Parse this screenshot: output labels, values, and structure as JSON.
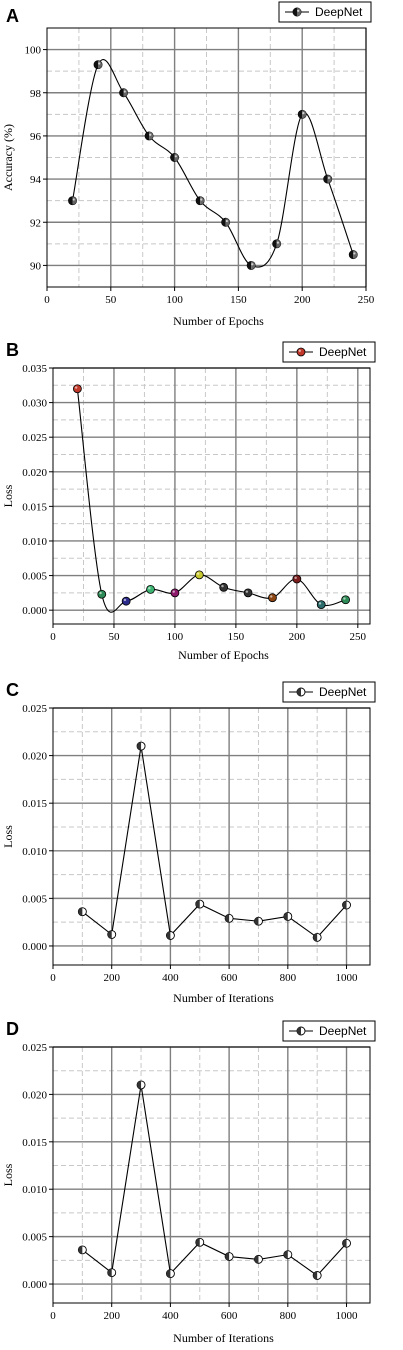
{
  "chart_data": [
    {
      "panel": "A",
      "type": "line",
      "xlabel": "Number of Epochs",
      "ylabel": "Accuracy (%)",
      "xlim": [
        0,
        250
      ],
      "ylim": [
        89,
        101
      ],
      "xticks": [
        "0",
        "50",
        "100",
        "150",
        "200",
        "250"
      ],
      "yticks": [
        "90",
        "92",
        "94",
        "96",
        "98",
        "100"
      ],
      "grid": true,
      "legend": "top-right",
      "smooth": true,
      "series": [
        {
          "name": "DeepNet",
          "marker_style": "half-black",
          "x": [
            20,
            40,
            60,
            80,
            100,
            120,
            140,
            160,
            180,
            200,
            220,
            240
          ],
          "y": [
            93,
            99.3,
            98,
            96,
            95,
            93,
            92,
            90,
            91,
            97,
            94,
            90.5
          ]
        }
      ]
    },
    {
      "panel": "B",
      "type": "line",
      "xlabel": "Number of Epochs",
      "ylabel": "Loss",
      "xlim": [
        0,
        260
      ],
      "ylim": [
        -0.002,
        0.035
      ],
      "xticks": [
        "0",
        "50",
        "100",
        "150",
        "200",
        "250"
      ],
      "yticks": [
        "0.000",
        "0.005",
        "0.010",
        "0.015",
        "0.020",
        "0.025",
        "0.030",
        "0.035"
      ],
      "grid": true,
      "legend": "top-right",
      "smooth": true,
      "series": [
        {
          "name": "DeepNet",
          "marker_style": "colored",
          "x": [
            20,
            40,
            60,
            80,
            100,
            120,
            140,
            160,
            180,
            200,
            220,
            240
          ],
          "y": [
            0.032,
            0.0023,
            0.0013,
            0.003,
            0.0025,
            0.0051,
            0.0033,
            0.0025,
            0.0018,
            0.0045,
            0.0008,
            0.0015
          ],
          "marker_colors": [
            "#c0392b",
            "#2e8b57",
            "#2b2b8c",
            "#3cb371",
            "#8b1a6b",
            "#c8c832",
            "#333333",
            "#333333",
            "#8b4513",
            "#7a1e1e",
            "#2b6b6b",
            "#2e8b57"
          ]
        }
      ]
    },
    {
      "panel": "C",
      "type": "line",
      "xlabel": "Number of Iterations",
      "ylabel": "Loss",
      "xlim": [
        0,
        1080
      ],
      "ylim": [
        -0.002,
        0.025
      ],
      "xticks": [
        "0",
        "200",
        "400",
        "600",
        "800",
        "1000"
      ],
      "yticks": [
        "0.000",
        "0.005",
        "0.010",
        "0.015",
        "0.020",
        "0.025"
      ],
      "grid": true,
      "legend": "top-right",
      "smooth": false,
      "series": [
        {
          "name": "DeepNet",
          "marker_style": "half-white",
          "x": [
            100,
            200,
            300,
            400,
            500,
            600,
            700,
            800,
            900,
            1000
          ],
          "y": [
            0.0036,
            0.0012,
            0.021,
            0.0011,
            0.0044,
            0.0029,
            0.0026,
            0.0031,
            0.0009,
            0.0043
          ]
        }
      ]
    },
    {
      "panel": "D",
      "type": "line",
      "xlabel": "Number of Iterations",
      "ylabel": "Loss",
      "xlim": [
        0,
        1080
      ],
      "ylim": [
        -0.002,
        0.025
      ],
      "xticks": [
        "0",
        "200",
        "400",
        "600",
        "800",
        "1000"
      ],
      "yticks": [
        "0.000",
        "0.005",
        "0.010",
        "0.015",
        "0.020",
        "0.025"
      ],
      "grid": true,
      "legend": "top-right",
      "smooth": false,
      "series": [
        {
          "name": "DeepNet",
          "marker_style": "half-white",
          "x": [
            100,
            200,
            300,
            400,
            500,
            600,
            700,
            800,
            900,
            1000
          ],
          "y": [
            0.0036,
            0.0012,
            0.021,
            0.0011,
            0.0044,
            0.0029,
            0.0026,
            0.0031,
            0.0009,
            0.0043
          ]
        }
      ]
    }
  ],
  "colors": {
    "axis": "#000000",
    "grid_major": "#7f7f7f",
    "grid_minor": "#c8c8c8",
    "line": "#000000"
  }
}
